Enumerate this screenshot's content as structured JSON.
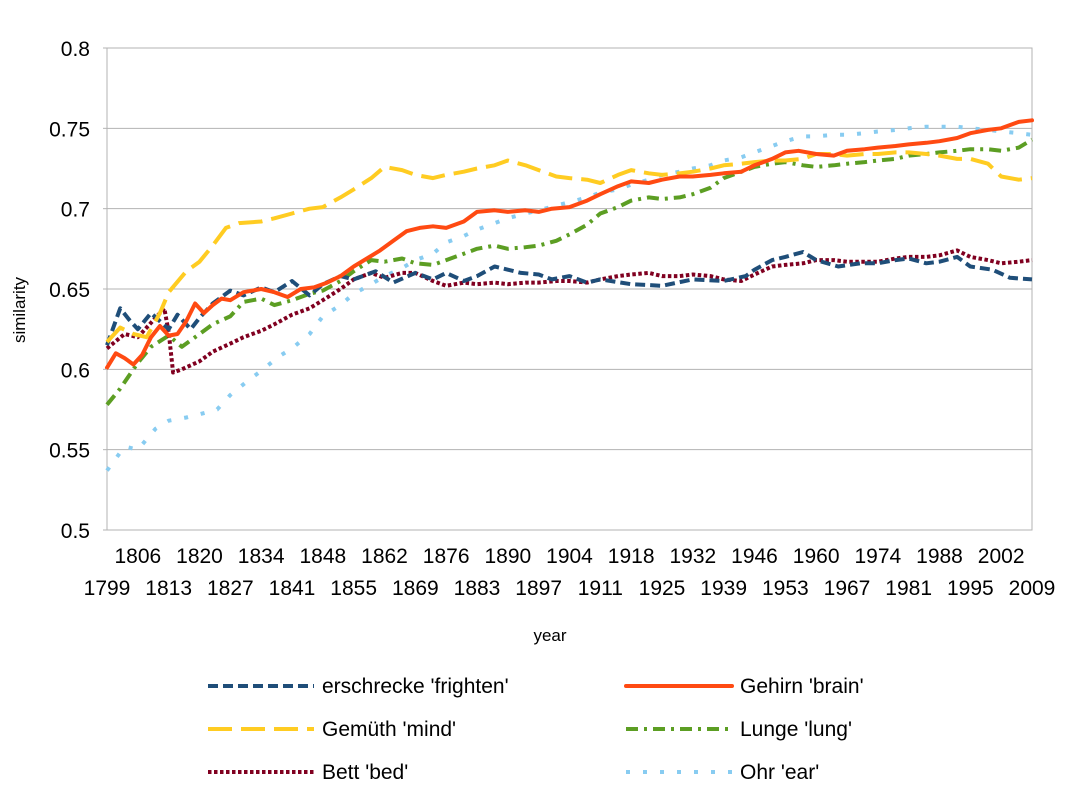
{
  "chart_data": {
    "type": "line",
    "title": "",
    "xlabel": "year",
    "ylabel": "similarity",
    "xlim": [
      1799,
      2009
    ],
    "ylim": [
      0.5,
      0.8
    ],
    "y_ticks": [
      0.5,
      0.55,
      0.6,
      0.65,
      0.7,
      0.75,
      0.8
    ],
    "y_tick_labels": [
      "0.5",
      "0.55",
      "0.6",
      "0.65",
      "0.7",
      "0.75",
      "0.8"
    ],
    "x_ticks_upper": [
      1806,
      1820,
      1834,
      1848,
      1862,
      1876,
      1890,
      1904,
      1918,
      1932,
      1946,
      1960,
      1974,
      1988,
      2002
    ],
    "x_ticks_lower": [
      1799,
      1813,
      1827,
      1841,
      1855,
      1869,
      1883,
      1897,
      1911,
      1925,
      1939,
      1953,
      1967,
      1981,
      1995,
      2009
    ],
    "grid": "horizontal",
    "legend_position": "bottom",
    "series": [
      {
        "name": "erschrecke 'frighten'",
        "color": "#1F4E79",
        "style": "dashed",
        "x": [
          1799,
          1802,
          1804,
          1806,
          1809,
          1813,
          1815,
          1818,
          1820,
          1823,
          1827,
          1830,
          1834,
          1837,
          1841,
          1845,
          1848,
          1852,
          1855,
          1860,
          1864,
          1869,
          1873,
          1876,
          1880,
          1883,
          1887,
          1890,
          1893,
          1897,
          1900,
          1904,
          1908,
          1911,
          1918,
          1925,
          1932,
          1939,
          1944,
          1946,
          1950,
          1953,
          1957,
          1960,
          1965,
          1970,
          1974,
          1978,
          1981,
          1985,
          1988,
          1992,
          1995,
          2000,
          2004,
          2009
        ],
        "values": [
          0.615,
          0.638,
          0.631,
          0.625,
          0.635,
          0.625,
          0.634,
          0.625,
          0.632,
          0.641,
          0.649,
          0.646,
          0.651,
          0.648,
          0.655,
          0.646,
          0.653,
          0.658,
          0.656,
          0.661,
          0.654,
          0.66,
          0.656,
          0.66,
          0.655,
          0.658,
          0.664,
          0.662,
          0.66,
          0.659,
          0.656,
          0.658,
          0.654,
          0.656,
          0.653,
          0.652,
          0.656,
          0.655,
          0.658,
          0.662,
          0.668,
          0.67,
          0.673,
          0.668,
          0.664,
          0.666,
          0.666,
          0.668,
          0.669,
          0.666,
          0.667,
          0.67,
          0.664,
          0.662,
          0.657,
          0.656
        ]
      },
      {
        "name": "Gehirn 'brain'",
        "color": "#FF4A12",
        "style": "solid",
        "x": [
          1799,
          1801,
          1803,
          1805,
          1807,
          1809,
          1811,
          1813,
          1815,
          1817,
          1819,
          1821,
          1823,
          1825,
          1827,
          1830,
          1834,
          1837,
          1840,
          1843,
          1846,
          1849,
          1852,
          1855,
          1858,
          1861,
          1864,
          1867,
          1870,
          1873,
          1876,
          1880,
          1883,
          1887,
          1890,
          1894,
          1897,
          1900,
          1904,
          1908,
          1911,
          1915,
          1918,
          1922,
          1925,
          1929,
          1932,
          1936,
          1939,
          1943,
          1946,
          1950,
          1953,
          1956,
          1960,
          1964,
          1967,
          1971,
          1974,
          1978,
          1981,
          1985,
          1988,
          1992,
          1995,
          1999,
          2002,
          2006,
          2009
        ],
        "values": [
          0.601,
          0.61,
          0.607,
          0.603,
          0.609,
          0.62,
          0.627,
          0.621,
          0.622,
          0.63,
          0.641,
          0.635,
          0.64,
          0.644,
          0.643,
          0.648,
          0.65,
          0.648,
          0.645,
          0.65,
          0.651,
          0.654,
          0.658,
          0.664,
          0.669,
          0.674,
          0.68,
          0.686,
          0.688,
          0.689,
          0.688,
          0.692,
          0.698,
          0.699,
          0.698,
          0.699,
          0.698,
          0.7,
          0.701,
          0.705,
          0.709,
          0.714,
          0.717,
          0.716,
          0.718,
          0.72,
          0.72,
          0.721,
          0.722,
          0.723,
          0.727,
          0.731,
          0.735,
          0.736,
          0.734,
          0.733,
          0.736,
          0.737,
          0.738,
          0.739,
          0.74,
          0.741,
          0.742,
          0.744,
          0.747,
          0.749,
          0.75,
          0.754,
          0.755
        ]
      },
      {
        "name": "Gemüth 'mind'",
        "color": "#FFCC22",
        "style": "long-dash",
        "x": [
          1799,
          1802,
          1805,
          1808,
          1811,
          1813,
          1817,
          1820,
          1823,
          1826,
          1829,
          1834,
          1837,
          1841,
          1845,
          1848,
          1852,
          1855,
          1859,
          1862,
          1866,
          1869,
          1873,
          1876,
          1880,
          1883,
          1887,
          1890,
          1894,
          1897,
          1901,
          1904,
          1908,
          1911,
          1915,
          1918,
          1922,
          1925,
          1929,
          1932,
          1936,
          1939,
          1943,
          1946,
          1950,
          1953,
          1957,
          1960,
          1964,
          1967,
          1971,
          1974,
          1978,
          1981,
          1985,
          1988,
          1992,
          1995,
          1999,
          2002,
          2006,
          2009
        ],
        "values": [
          0.617,
          0.626,
          0.622,
          0.62,
          0.635,
          0.648,
          0.661,
          0.667,
          0.677,
          0.688,
          0.691,
          0.692,
          0.694,
          0.697,
          0.7,
          0.701,
          0.707,
          0.712,
          0.719,
          0.726,
          0.724,
          0.721,
          0.719,
          0.721,
          0.723,
          0.725,
          0.727,
          0.73,
          0.727,
          0.724,
          0.72,
          0.719,
          0.718,
          0.716,
          0.721,
          0.724,
          0.722,
          0.721,
          0.722,
          0.723,
          0.725,
          0.727,
          0.728,
          0.729,
          0.73,
          0.73,
          0.731,
          0.734,
          0.734,
          0.733,
          0.734,
          0.734,
          0.735,
          0.735,
          0.734,
          0.733,
          0.731,
          0.731,
          0.728,
          0.72,
          0.718,
          0.719
        ]
      },
      {
        "name": "Lunge 'lung'",
        "color": "#5C9E23",
        "style": "dash-dot",
        "x": [
          1799,
          1802,
          1806,
          1809,
          1813,
          1816,
          1820,
          1823,
          1827,
          1830,
          1834,
          1837,
          1841,
          1845,
          1848,
          1852,
          1855,
          1859,
          1862,
          1866,
          1869,
          1873,
          1876,
          1880,
          1883,
          1887,
          1890,
          1894,
          1897,
          1901,
          1904,
          1908,
          1911,
          1915,
          1918,
          1922,
          1925,
          1929,
          1932,
          1936,
          1939,
          1943,
          1946,
          1950,
          1953,
          1957,
          1960,
          1964,
          1967,
          1971,
          1974,
          1978,
          1981,
          1985,
          1988,
          1992,
          1995,
          1999,
          2002,
          2006,
          2009
        ],
        "values": [
          0.578,
          0.588,
          0.604,
          0.614,
          0.621,
          0.614,
          0.622,
          0.628,
          0.633,
          0.642,
          0.644,
          0.64,
          0.643,
          0.647,
          0.649,
          0.655,
          0.661,
          0.668,
          0.667,
          0.669,
          0.666,
          0.665,
          0.668,
          0.672,
          0.675,
          0.677,
          0.675,
          0.676,
          0.677,
          0.68,
          0.684,
          0.69,
          0.697,
          0.701,
          0.705,
          0.707,
          0.706,
          0.707,
          0.709,
          0.713,
          0.719,
          0.723,
          0.726,
          0.728,
          0.729,
          0.727,
          0.726,
          0.727,
          0.728,
          0.729,
          0.73,
          0.731,
          0.733,
          0.734,
          0.735,
          0.736,
          0.737,
          0.737,
          0.736,
          0.738,
          0.743
        ]
      },
      {
        "name": "Bett 'bed'",
        "color": "#800020",
        "style": "dotted",
        "x": [
          1799,
          1803,
          1806,
          1810,
          1812,
          1813,
          1814,
          1816,
          1820,
          1823,
          1827,
          1830,
          1834,
          1837,
          1841,
          1845,
          1848,
          1852,
          1855,
          1859,
          1862,
          1866,
          1869,
          1873,
          1876,
          1880,
          1883,
          1887,
          1890,
          1894,
          1897,
          1901,
          1904,
          1908,
          1911,
          1915,
          1918,
          1922,
          1925,
          1929,
          1932,
          1936,
          1939,
          1943,
          1946,
          1950,
          1953,
          1957,
          1960,
          1964,
          1967,
          1971,
          1974,
          1978,
          1981,
          1985,
          1988,
          1992,
          1995,
          1999,
          2002,
          2006,
          2009
        ],
        "values": [
          0.613,
          0.622,
          0.62,
          0.632,
          0.638,
          0.623,
          0.598,
          0.6,
          0.605,
          0.611,
          0.616,
          0.62,
          0.624,
          0.628,
          0.634,
          0.638,
          0.643,
          0.65,
          0.656,
          0.66,
          0.657,
          0.66,
          0.66,
          0.655,
          0.652,
          0.654,
          0.653,
          0.654,
          0.653,
          0.654,
          0.654,
          0.655,
          0.655,
          0.654,
          0.656,
          0.658,
          0.659,
          0.66,
          0.658,
          0.658,
          0.659,
          0.658,
          0.656,
          0.655,
          0.659,
          0.664,
          0.665,
          0.666,
          0.668,
          0.668,
          0.667,
          0.667,
          0.667,
          0.669,
          0.67,
          0.67,
          0.671,
          0.674,
          0.67,
          0.668,
          0.666,
          0.667,
          0.668
        ]
      },
      {
        "name": "Ohr 'ear'",
        "color": "#88CCF1",
        "style": "sparse-dotted",
        "x": [
          1799,
          1803,
          1806,
          1810,
          1813,
          1817,
          1820,
          1824,
          1827,
          1831,
          1834,
          1838,
          1841,
          1845,
          1848,
          1852,
          1855,
          1859,
          1862,
          1866,
          1869,
          1873,
          1876,
          1880,
          1883,
          1887,
          1890,
          1894,
          1897,
          1901,
          1904,
          1908,
          1911,
          1915,
          1918,
          1922,
          1925,
          1929,
          1932,
          1936,
          1939,
          1943,
          1946,
          1950,
          1953,
          1957,
          1960,
          1964,
          1967,
          1971,
          1974,
          1978,
          1981,
          1985,
          1988,
          1992,
          1995,
          1999,
          2002,
          2006,
          2009
        ],
        "values": [
          0.537,
          0.552,
          0.55,
          0.563,
          0.568,
          0.57,
          0.572,
          0.575,
          0.584,
          0.593,
          0.599,
          0.608,
          0.613,
          0.622,
          0.633,
          0.64,
          0.647,
          0.653,
          0.658,
          0.663,
          0.668,
          0.672,
          0.679,
          0.683,
          0.687,
          0.691,
          0.694,
          0.697,
          0.699,
          0.702,
          0.704,
          0.707,
          0.71,
          0.712,
          0.715,
          0.718,
          0.721,
          0.723,
          0.725,
          0.727,
          0.73,
          0.732,
          0.735,
          0.739,
          0.742,
          0.745,
          0.745,
          0.746,
          0.746,
          0.747,
          0.748,
          0.749,
          0.75,
          0.751,
          0.751,
          0.751,
          0.75,
          0.749,
          0.748,
          0.747,
          0.746
        ]
      }
    ]
  }
}
